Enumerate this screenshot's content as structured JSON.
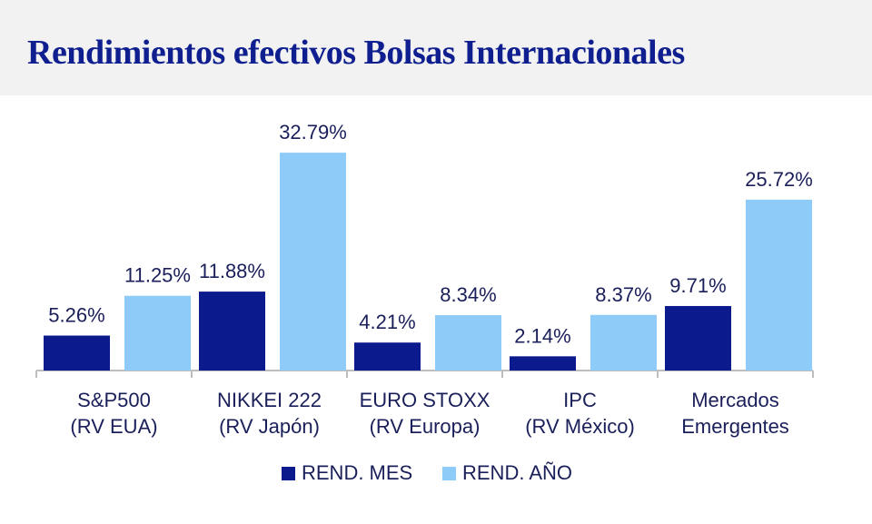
{
  "title": "Rendimientos efectivos Bolsas Internacionales",
  "colors": {
    "title": "#0f1f8f",
    "header_bg": "#f2f2f2",
    "text": "#1a1f5a",
    "axis": "#bdbdbd"
  },
  "chart_data": {
    "type": "bar",
    "categories": [
      [
        "S&P500",
        "(RV EUA)"
      ],
      [
        "NIKKEI 222",
        "(RV Japón)"
      ],
      [
        "EURO STOXX",
        "(RV Europa)"
      ],
      [
        "IPC",
        "(RV México)"
      ],
      [
        "Mercados",
        "Emergentes"
      ]
    ],
    "series": [
      {
        "name": "REND. MES",
        "color": "#0b1a8c",
        "values": [
          5.26,
          11.88,
          4.21,
          2.14,
          9.71
        ],
        "labels": [
          "5.26%",
          "11.88%",
          "4.21%",
          "2.14%",
          "9.71%"
        ]
      },
      {
        "name": "REND. AÑO",
        "color": "#8ecbf8",
        "values": [
          11.25,
          32.79,
          8.34,
          8.37,
          25.72
        ],
        "labels": [
          "11.25%",
          "32.79%",
          "8.34%",
          "8.37%",
          "25.72%"
        ]
      }
    ],
    "ylim": [
      0,
      35
    ],
    "grid": false,
    "legend_position": "bottom"
  }
}
